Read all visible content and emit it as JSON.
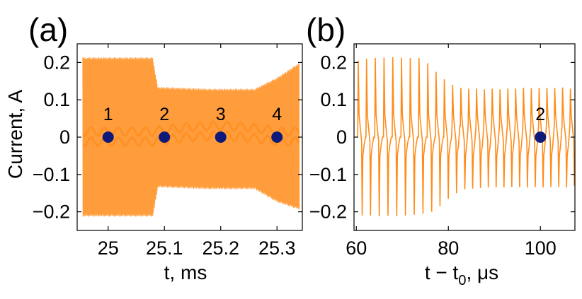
{
  "chart_data": [
    {
      "type": "line",
      "panel_label": "(a)",
      "title": "",
      "xlabel": "t, ms",
      "ylabel": "Current, A",
      "xlim": [
        24.945,
        25.345
      ],
      "ylim": [
        -0.25,
        0.25
      ],
      "xticks": [
        25,
        25.1,
        25.2,
        25.3
      ],
      "xtick_labels": [
        "25",
        "25.1",
        "25.2",
        "25.3"
      ],
      "yticks": [
        -0.2,
        -0.1,
        0,
        0.1,
        0.2
      ],
      "ytick_labels": [
        "−0.2",
        "−0.1",
        "0",
        "0.1",
        "0.2"
      ],
      "grid": false,
      "series_color": "#ff8c1a",
      "marker_color": "#0d1a7a",
      "envelope": [
        {
          "t": 24.955,
          "upper": 0.214,
          "lower": -0.213
        },
        {
          "t": 25.079,
          "upper": 0.214,
          "lower": -0.213
        },
        {
          "t": 25.088,
          "upper": 0.135,
          "lower": -0.135
        },
        {
          "t": 25.18,
          "upper": 0.13,
          "lower": -0.14
        },
        {
          "t": 25.26,
          "upper": 0.13,
          "lower": -0.14
        },
        {
          "t": 25.3,
          "upper": 0.16,
          "lower": -0.175
        },
        {
          "t": 25.34,
          "upper": 0.2,
          "lower": -0.195
        }
      ],
      "markers": [
        {
          "label": "1",
          "t": 25.0,
          "current": 0
        },
        {
          "label": "2",
          "t": 25.1,
          "current": 0
        },
        {
          "label": "3",
          "t": 25.2,
          "current": 0
        },
        {
          "label": "4",
          "t": 25.3,
          "current": 0
        }
      ]
    },
    {
      "type": "line",
      "panel_label": "(b)",
      "title": "",
      "xlabel_main": "t − t",
      "xlabel_sub": "0",
      "xlabel_unit": ", μs",
      "xlim": [
        59.5,
        107.5
      ],
      "ylim": [
        -0.25,
        0.25
      ],
      "xticks": [
        60,
        80,
        100
      ],
      "xtick_labels": [
        "60",
        "80",
        "100"
      ],
      "yticks": [
        -0.2,
        -0.1,
        0,
        0.1,
        0.2
      ],
      "ytick_labels": [
        "−0.2",
        "−0.1",
        "0",
        "0.1",
        "0.2"
      ],
      "grid": false,
      "series_color": "#ff8c1a",
      "marker_color": "#0d1a7a",
      "pulses": [
        {
          "t": 60.3,
          "peak": 0.205,
          "trough": -0.21
        },
        {
          "t": 62.1,
          "peak": 0.21,
          "trough": -0.21
        },
        {
          "t": 64.0,
          "peak": 0.212,
          "trough": -0.212
        },
        {
          "t": 65.9,
          "peak": 0.213,
          "trough": -0.211
        },
        {
          "t": 67.8,
          "peak": 0.214,
          "trough": -0.212
        },
        {
          "t": 69.7,
          "peak": 0.213,
          "trough": -0.21
        },
        {
          "t": 71.6,
          "peak": 0.212,
          "trough": -0.208
        },
        {
          "t": 73.5,
          "peak": 0.212,
          "trough": -0.205
        },
        {
          "t": 75.4,
          "peak": 0.198,
          "trough": -0.2
        },
        {
          "t": 77.2,
          "peak": 0.175,
          "trough": -0.185
        },
        {
          "t": 79.0,
          "peak": 0.155,
          "trough": -0.165
        },
        {
          "t": 80.8,
          "peak": 0.14,
          "trough": -0.15
        },
        {
          "t": 82.6,
          "peak": 0.132,
          "trough": -0.14
        },
        {
          "t": 84.3,
          "peak": 0.13,
          "trough": -0.138
        },
        {
          "t": 86.0,
          "peak": 0.13,
          "trough": -0.136
        },
        {
          "t": 87.7,
          "peak": 0.128,
          "trough": -0.135
        },
        {
          "t": 89.4,
          "peak": 0.13,
          "trough": -0.135
        },
        {
          "t": 91.1,
          "peak": 0.128,
          "trough": -0.135
        },
        {
          "t": 92.8,
          "peak": 0.13,
          "trough": -0.134
        },
        {
          "t": 94.5,
          "peak": 0.13,
          "trough": -0.134
        },
        {
          "t": 96.2,
          "peak": 0.132,
          "trough": -0.135
        },
        {
          "t": 97.9,
          "peak": 0.131,
          "trough": -0.134
        },
        {
          "t": 99.6,
          "peak": 0.132,
          "trough": -0.135
        },
        {
          "t": 101.3,
          "peak": 0.132,
          "trough": -0.134
        },
        {
          "t": 103.0,
          "peak": 0.132,
          "trough": -0.134
        },
        {
          "t": 104.7,
          "peak": 0.133,
          "trough": -0.135
        },
        {
          "t": 106.4,
          "peak": 0.13,
          "trough": -0.13
        }
      ],
      "markers": [
        {
          "label": "2",
          "t": 100,
          "current": 0
        }
      ]
    }
  ]
}
